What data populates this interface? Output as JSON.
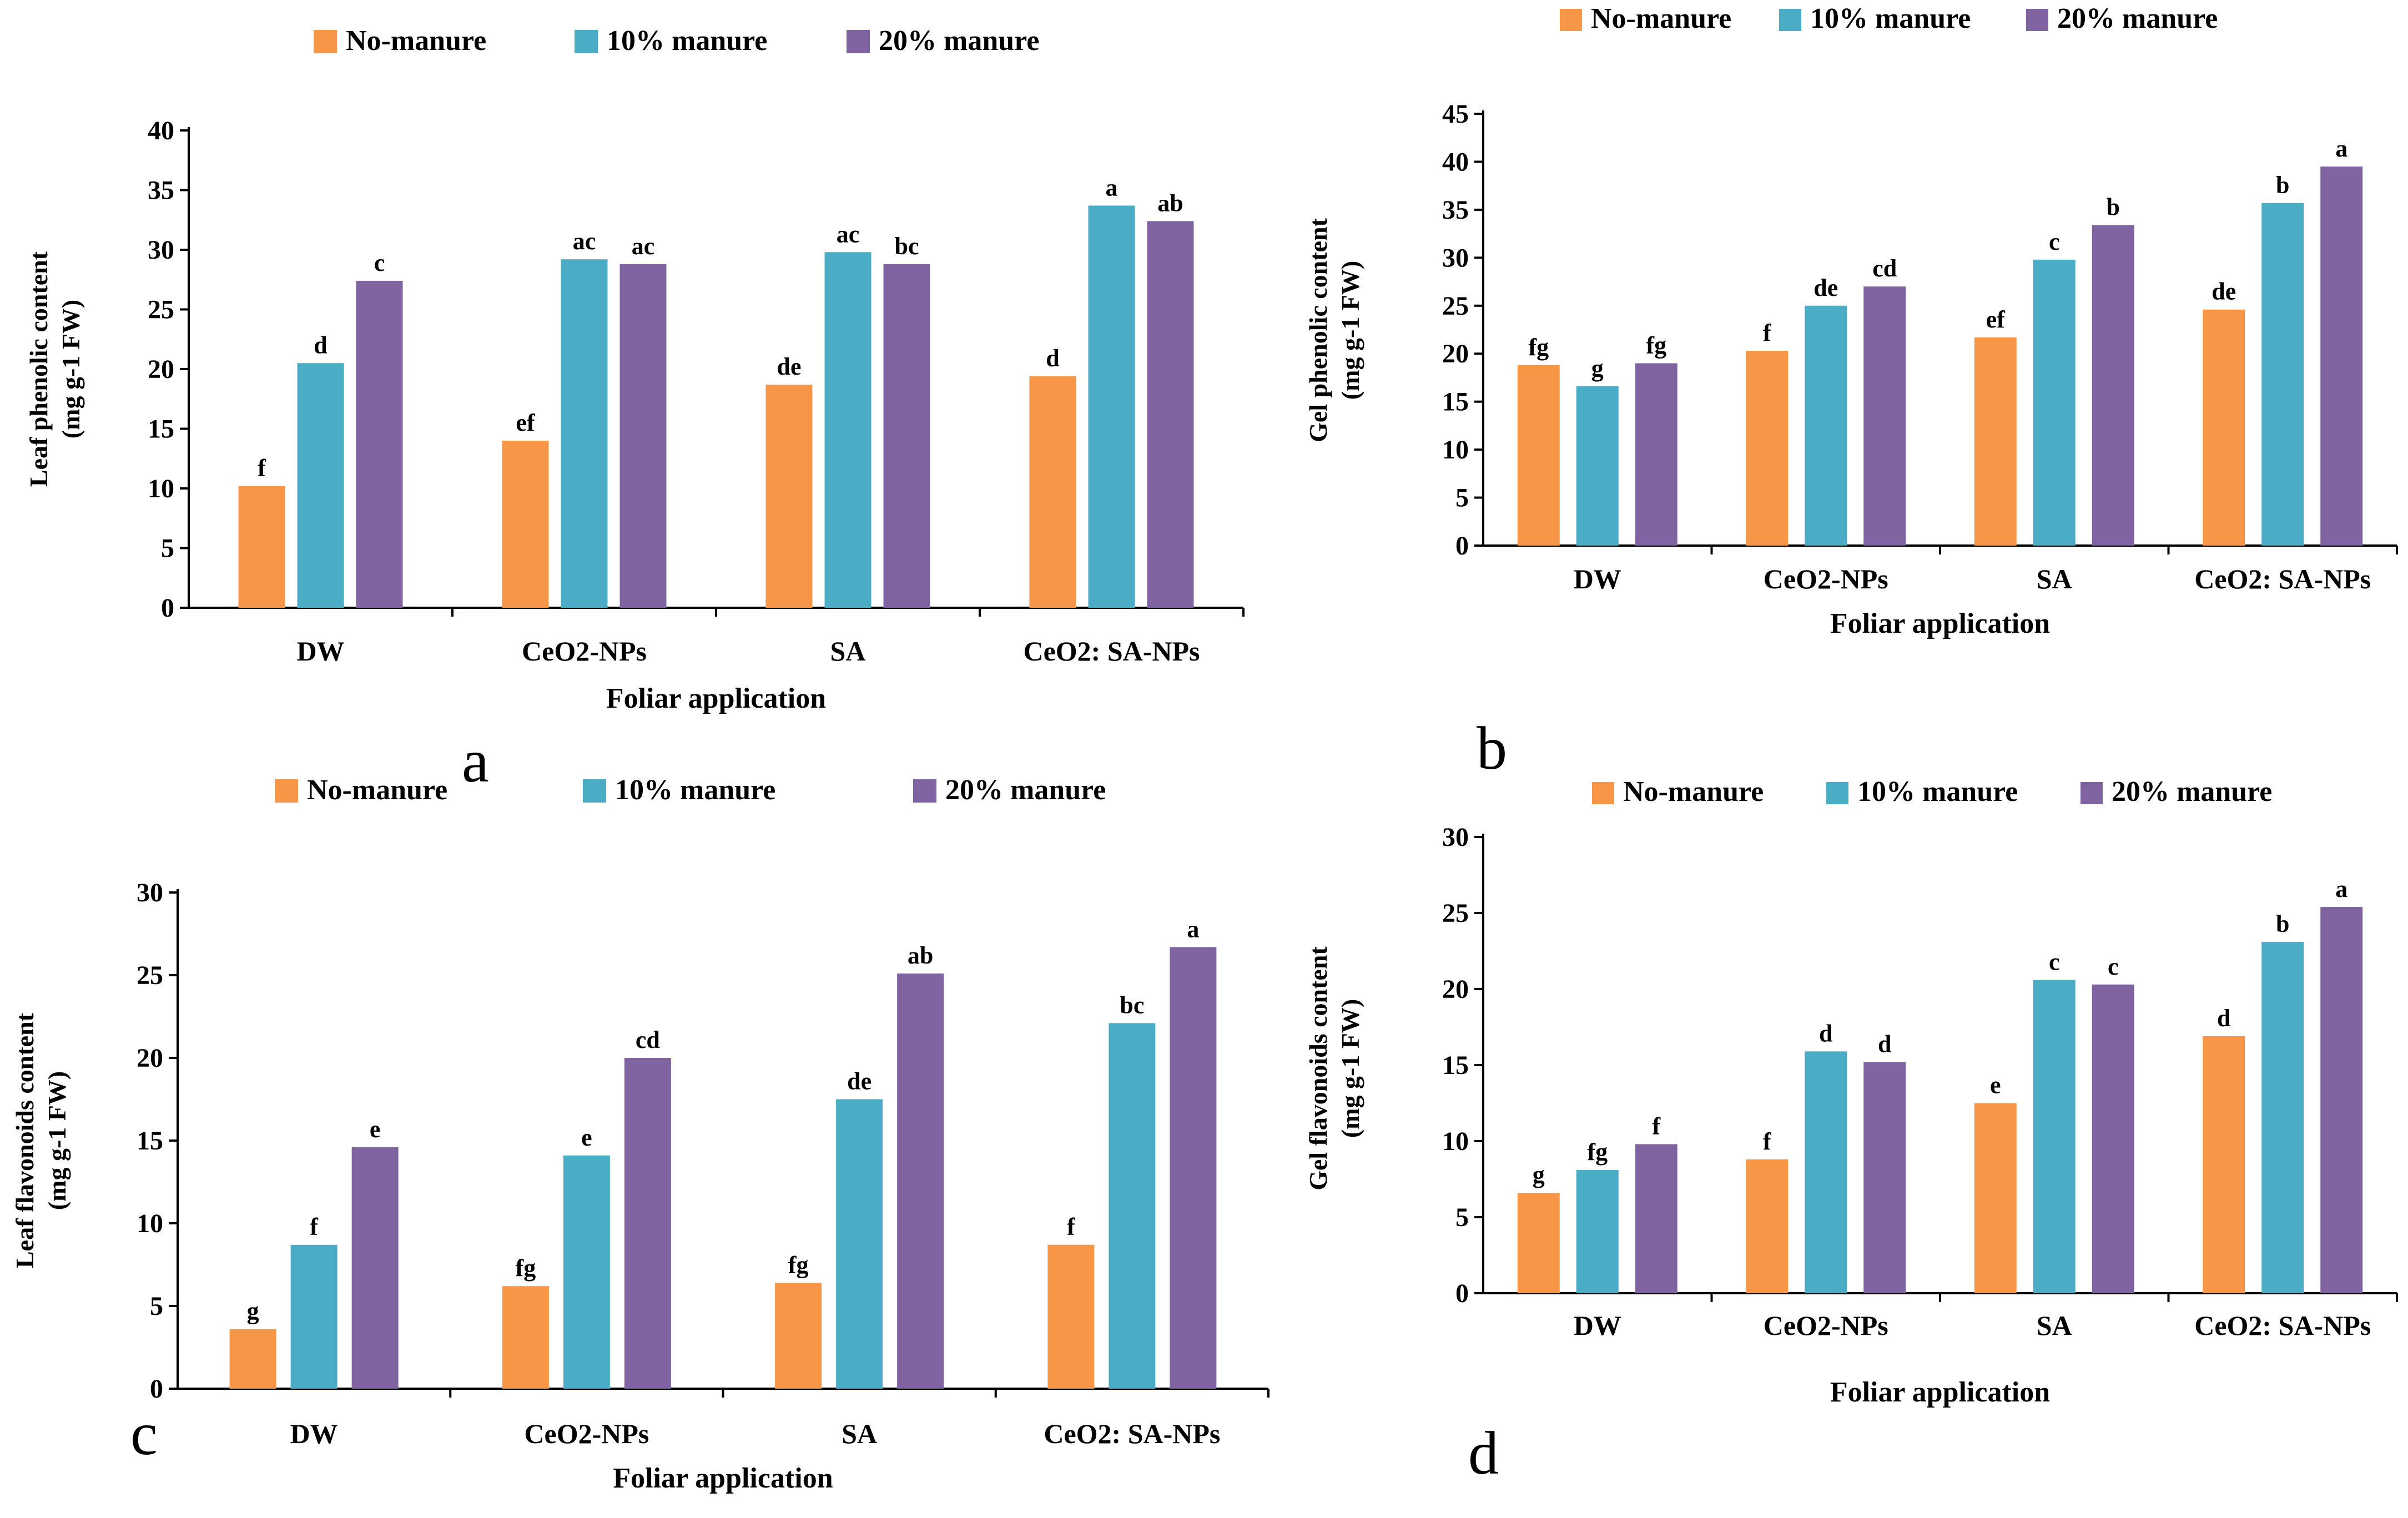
{
  "series_names": [
    "No-manure",
    "10% manure",
    "20% manure"
  ],
  "colors": {
    "no_manure": "#F79646",
    "manure_10": "#4BACC6",
    "manure_20": "#8064A2"
  },
  "chart_data": [
    {
      "type": "bar",
      "panel": "a",
      "categories": [
        "DW",
        "CeO2-NPs",
        "SA",
        "CeO2: SA-NPs"
      ],
      "xlabel": "Foliar application",
      "ylabel_line1": "Leaf phenolic content",
      "ylabel_line2": "(mg g-1 FW)",
      "ylim": [
        0,
        40
      ],
      "yticks": [
        0,
        5,
        10,
        15,
        20,
        25,
        30,
        35,
        40
      ],
      "series": [
        {
          "name": "No-manure",
          "values": [
            10.2,
            14.0,
            18.7,
            19.4
          ],
          "labels": [
            "f",
            "ef",
            "de",
            "d"
          ]
        },
        {
          "name": "10% manure",
          "values": [
            20.5,
            29.2,
            29.8,
            33.7
          ],
          "labels": [
            "d",
            "ac",
            "ac",
            "a"
          ]
        },
        {
          "name": "20% manure",
          "values": [
            27.4,
            28.8,
            28.8,
            32.4
          ],
          "labels": [
            "c",
            "ac",
            "bc",
            "ab"
          ]
        }
      ]
    },
    {
      "type": "bar",
      "panel": "b",
      "categories": [
        "DW",
        "CeO2-NPs",
        "SA",
        "CeO2: SA-NPs"
      ],
      "xlabel": "Foliar application",
      "ylabel_line1": "Gel phenolic content",
      "ylabel_line2": "(mg g-1 FW)",
      "ylim": [
        0,
        45
      ],
      "yticks": [
        0,
        5,
        10,
        15,
        20,
        25,
        30,
        35,
        40,
        45
      ],
      "series": [
        {
          "name": "No-manure",
          "values": [
            18.8,
            20.3,
            21.7,
            24.6
          ],
          "labels": [
            "fg",
            "f",
            "ef",
            "de"
          ]
        },
        {
          "name": "10% manure",
          "values": [
            16.6,
            25.0,
            29.8,
            35.7
          ],
          "labels": [
            "g",
            "de",
            "c",
            "b"
          ]
        },
        {
          "name": "20% manure",
          "values": [
            19.0,
            27.0,
            33.4,
            39.5
          ],
          "labels": [
            "fg",
            "cd",
            "b",
            "a"
          ]
        }
      ]
    },
    {
      "type": "bar",
      "panel": "c",
      "categories": [
        "DW",
        "CeO2-NPs",
        "SA",
        "CeO2: SA-NPs"
      ],
      "xlabel": "Foliar application",
      "ylabel_line1": "Leaf flavonoids content",
      "ylabel_line2": "(mg g-1 FW)",
      "ylim": [
        0,
        30
      ],
      "yticks": [
        0,
        5,
        10,
        15,
        20,
        25,
        30
      ],
      "series": [
        {
          "name": "No-manure",
          "values": [
            3.6,
            6.2,
            6.4,
            8.7
          ],
          "labels": [
            "g",
            "fg",
            "fg",
            "f"
          ]
        },
        {
          "name": "10% manure",
          "values": [
            8.7,
            14.1,
            17.5,
            22.1
          ],
          "labels": [
            "f",
            "e",
            "de",
            "bc"
          ]
        },
        {
          "name": "20% manure",
          "values": [
            14.6,
            20.0,
            25.1,
            26.7
          ],
          "labels": [
            "e",
            "cd",
            "ab",
            "a"
          ]
        }
      ]
    },
    {
      "type": "bar",
      "panel": "d",
      "categories": [
        "DW",
        "CeO2-NPs",
        "SA",
        "CeO2: SA-NPs"
      ],
      "xlabel": "Foliar application",
      "ylabel_line1": "Gel flavonoids content",
      "ylabel_line2": "(mg g-1 FW)",
      "ylim": [
        0,
        30
      ],
      "yticks": [
        0,
        5,
        10,
        15,
        20,
        25,
        30
      ],
      "series": [
        {
          "name": "No-manure",
          "values": [
            6.6,
            8.8,
            12.5,
            16.9
          ],
          "labels": [
            "g",
            "f",
            "e",
            "d"
          ]
        },
        {
          "name": "10% manure",
          "values": [
            8.1,
            15.9,
            20.6,
            23.1
          ],
          "labels": [
            "fg",
            "d",
            "c",
            "b"
          ]
        },
        {
          "name": "20% manure",
          "values": [
            9.8,
            15.2,
            20.3,
            25.4
          ],
          "labels": [
            "f",
            "d",
            "c",
            "a"
          ]
        }
      ]
    }
  ]
}
